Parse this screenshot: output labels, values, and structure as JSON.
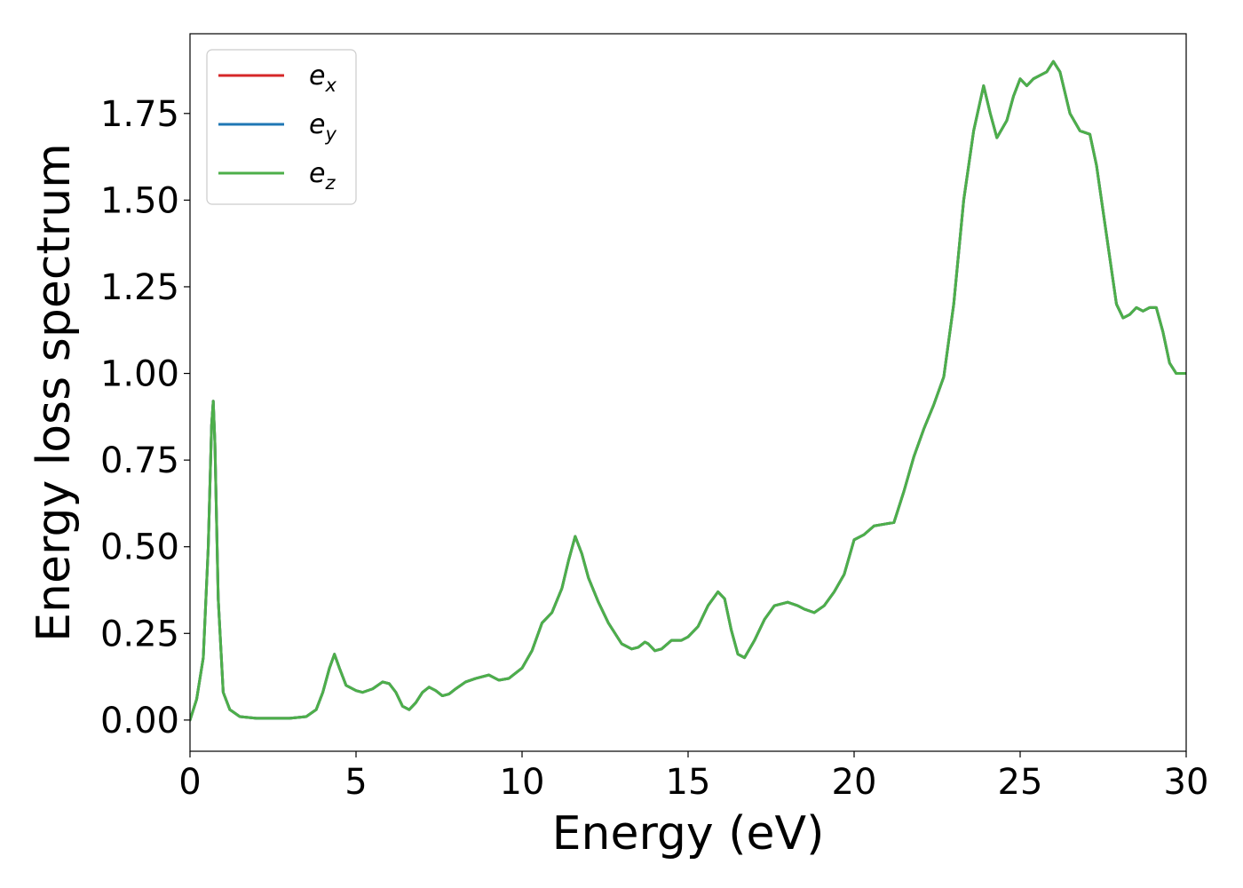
{
  "chart_data": {
    "type": "line",
    "title": "",
    "xlabel": "Energy (eV)",
    "ylabel": "Energy loss spectrum",
    "xlim": [
      0,
      30
    ],
    "ylim": [
      -0.09,
      1.98
    ],
    "xticks": [
      0,
      5,
      10,
      15,
      20,
      25,
      30
    ],
    "xtick_labels": [
      "0",
      "5",
      "10",
      "15",
      "20",
      "25",
      "30"
    ],
    "yticks": [
      0,
      0.25,
      0.5,
      0.75,
      1.0,
      1.25,
      1.5,
      1.75
    ],
    "ytick_labels": [
      "0.00",
      "0.25",
      "0.50",
      "0.75",
      "1.00",
      "1.25",
      "1.50",
      "1.75"
    ],
    "grid": false,
    "legend_position": "top-left",
    "x": [
      0,
      0.2,
      0.4,
      0.55,
      0.65,
      0.7,
      0.75,
      0.85,
      1.0,
      1.2,
      1.5,
      2.0,
      2.5,
      3.0,
      3.5,
      3.8,
      4.0,
      4.2,
      4.35,
      4.5,
      4.7,
      5.0,
      5.2,
      5.5,
      5.8,
      6.0,
      6.2,
      6.4,
      6.6,
      6.8,
      7.0,
      7.2,
      7.4,
      7.6,
      7.8,
      8.0,
      8.3,
      8.6,
      9.0,
      9.3,
      9.6,
      10.0,
      10.3,
      10.6,
      10.9,
      11.2,
      11.4,
      11.6,
      11.8,
      12.0,
      12.3,
      12.6,
      13.0,
      13.3,
      13.5,
      13.7,
      13.8,
      14.0,
      14.2,
      14.5,
      14.8,
      15.0,
      15.3,
      15.6,
      15.9,
      16.1,
      16.3,
      16.5,
      16.7,
      17.0,
      17.3,
      17.6,
      18.0,
      18.3,
      18.5,
      18.8,
      19.1,
      19.4,
      19.7,
      20.0,
      20.3,
      20.6,
      20.9,
      21.2,
      21.5,
      21.8,
      22.1,
      22.4,
      22.7,
      23.0,
      23.3,
      23.6,
      23.9,
      24.1,
      24.3,
      24.6,
      24.8,
      25.0,
      25.2,
      25.4,
      25.6,
      25.8,
      26.0,
      26.2,
      26.5,
      26.8,
      27.1,
      27.3,
      27.6,
      27.9,
      28.1,
      28.3,
      28.5,
      28.7,
      28.9,
      29.1,
      29.3,
      29.5,
      29.7,
      30.0
    ],
    "series": [
      {
        "name": "e_x",
        "color": "#d62728",
        "y": [
          0.0,
          0.06,
          0.18,
          0.5,
          0.85,
          0.92,
          0.8,
          0.35,
          0.08,
          0.03,
          0.01,
          0.005,
          0.005,
          0.005,
          0.01,
          0.03,
          0.08,
          0.15,
          0.19,
          0.15,
          0.1,
          0.085,
          0.08,
          0.09,
          0.11,
          0.105,
          0.08,
          0.04,
          0.03,
          0.05,
          0.08,
          0.095,
          0.085,
          0.07,
          0.075,
          0.09,
          0.11,
          0.12,
          0.13,
          0.115,
          0.12,
          0.15,
          0.2,
          0.28,
          0.31,
          0.38,
          0.46,
          0.53,
          0.48,
          0.41,
          0.34,
          0.28,
          0.22,
          0.205,
          0.21,
          0.225,
          0.22,
          0.2,
          0.205,
          0.23,
          0.23,
          0.24,
          0.27,
          0.33,
          0.37,
          0.35,
          0.26,
          0.19,
          0.18,
          0.23,
          0.29,
          0.33,
          0.34,
          0.33,
          0.32,
          0.31,
          0.33,
          0.37,
          0.42,
          0.52,
          0.535,
          0.56,
          0.565,
          0.57,
          0.66,
          0.76,
          0.84,
          0.91,
          0.99,
          1.2,
          1.5,
          1.7,
          1.83,
          1.75,
          1.68,
          1.73,
          1.8,
          1.85,
          1.83,
          1.85,
          1.86,
          1.87,
          1.9,
          1.87,
          1.75,
          1.7,
          1.69,
          1.6,
          1.4,
          1.2,
          1.16,
          1.17,
          1.19,
          1.18,
          1.19,
          1.19,
          1.12,
          1.03,
          1.0,
          1.0
        ]
      },
      {
        "name": "e_y",
        "color": "#1f77b4",
        "y": [
          0.0,
          0.06,
          0.18,
          0.5,
          0.85,
          0.92,
          0.8,
          0.35,
          0.08,
          0.03,
          0.01,
          0.005,
          0.005,
          0.005,
          0.01,
          0.03,
          0.08,
          0.15,
          0.19,
          0.15,
          0.1,
          0.085,
          0.08,
          0.09,
          0.11,
          0.105,
          0.08,
          0.04,
          0.03,
          0.05,
          0.08,
          0.095,
          0.085,
          0.07,
          0.075,
          0.09,
          0.11,
          0.12,
          0.13,
          0.115,
          0.12,
          0.15,
          0.2,
          0.28,
          0.31,
          0.38,
          0.46,
          0.53,
          0.48,
          0.41,
          0.34,
          0.28,
          0.22,
          0.205,
          0.21,
          0.225,
          0.22,
          0.2,
          0.205,
          0.23,
          0.23,
          0.24,
          0.27,
          0.33,
          0.37,
          0.35,
          0.26,
          0.19,
          0.18,
          0.23,
          0.29,
          0.33,
          0.34,
          0.33,
          0.32,
          0.31,
          0.33,
          0.37,
          0.42,
          0.52,
          0.535,
          0.56,
          0.565,
          0.57,
          0.66,
          0.76,
          0.84,
          0.91,
          0.99,
          1.2,
          1.5,
          1.7,
          1.83,
          1.75,
          1.68,
          1.73,
          1.8,
          1.85,
          1.83,
          1.85,
          1.86,
          1.87,
          1.9,
          1.87,
          1.75,
          1.7,
          1.69,
          1.6,
          1.4,
          1.2,
          1.16,
          1.17,
          1.19,
          1.18,
          1.19,
          1.19,
          1.12,
          1.03,
          1.0,
          1.0
        ]
      },
      {
        "name": "e_z",
        "color": "#4daf4a",
        "y": [
          0.0,
          0.06,
          0.18,
          0.5,
          0.85,
          0.92,
          0.8,
          0.35,
          0.08,
          0.03,
          0.01,
          0.005,
          0.005,
          0.005,
          0.01,
          0.03,
          0.08,
          0.15,
          0.19,
          0.15,
          0.1,
          0.085,
          0.08,
          0.09,
          0.11,
          0.105,
          0.08,
          0.04,
          0.03,
          0.05,
          0.08,
          0.095,
          0.085,
          0.07,
          0.075,
          0.09,
          0.11,
          0.12,
          0.13,
          0.115,
          0.12,
          0.15,
          0.2,
          0.28,
          0.31,
          0.38,
          0.46,
          0.53,
          0.48,
          0.41,
          0.34,
          0.28,
          0.22,
          0.205,
          0.21,
          0.225,
          0.22,
          0.2,
          0.205,
          0.23,
          0.23,
          0.24,
          0.27,
          0.33,
          0.37,
          0.35,
          0.26,
          0.19,
          0.18,
          0.23,
          0.29,
          0.33,
          0.34,
          0.33,
          0.32,
          0.31,
          0.33,
          0.37,
          0.42,
          0.52,
          0.535,
          0.56,
          0.565,
          0.57,
          0.66,
          0.76,
          0.84,
          0.91,
          0.99,
          1.2,
          1.5,
          1.7,
          1.83,
          1.75,
          1.68,
          1.73,
          1.8,
          1.85,
          1.83,
          1.85,
          1.86,
          1.87,
          1.9,
          1.87,
          1.75,
          1.7,
          1.69,
          1.6,
          1.4,
          1.2,
          1.16,
          1.17,
          1.19,
          1.18,
          1.19,
          1.19,
          1.12,
          1.03,
          1.0,
          1.0
        ]
      }
    ],
    "legend_entries": [
      {
        "base": "e",
        "sub": "x",
        "color": "#d62728"
      },
      {
        "base": "e",
        "sub": "y",
        "color": "#1f77b4"
      },
      {
        "base": "e",
        "sub": "z",
        "color": "#4daf4a"
      }
    ]
  }
}
